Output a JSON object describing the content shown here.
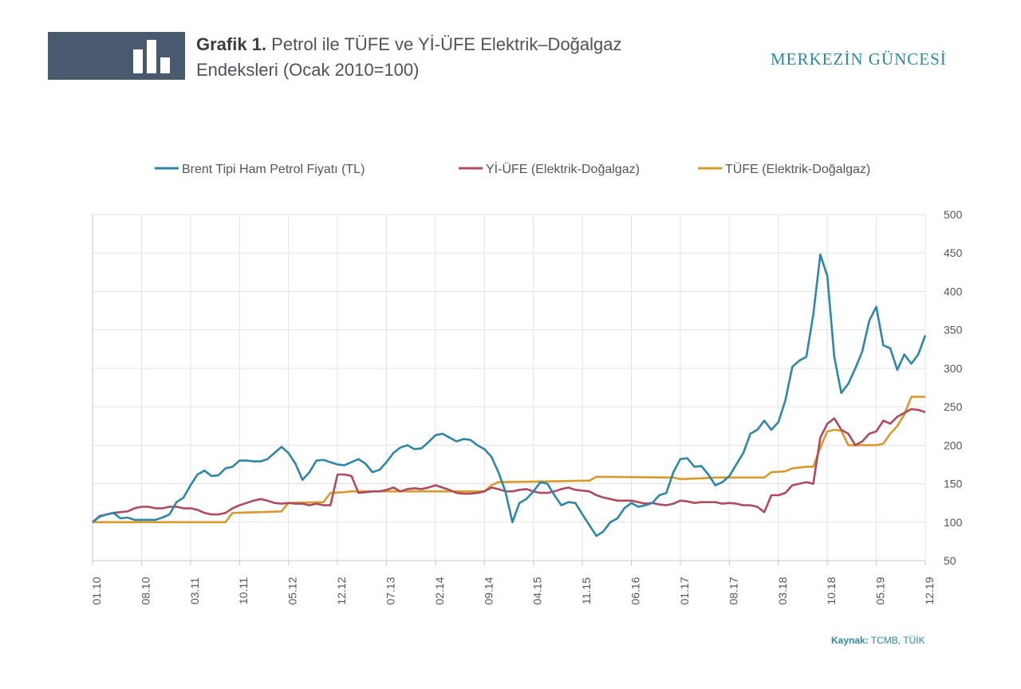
{
  "header": {
    "title_lead": "Grafik 1.",
    "title_rest": " Petrol ile TÜFE ve Yİ-ÜFE Elektrik–Doğalgaz",
    "title_line2": "Endeksleri  (Ocak 2010=100)",
    "brand": "MERKEZİN GÜNCESİ",
    "icon": "bar-chart-icon"
  },
  "source": {
    "label": "Kaynak:",
    "text": " TCMB, TÜİK"
  },
  "colors": {
    "brent": "#2e86a8",
    "yiufe": "#b04a5e",
    "tufe": "#d99a2b",
    "grid": "#e3e3e3",
    "axis": "#c8c8c8",
    "text": "#555555"
  },
  "chart_data": {
    "type": "line",
    "title": "Petrol ile TÜFE ve Yİ-ÜFE Elektrik–Doğalgaz Endeksleri (Ocak 2010=100)",
    "xlabel": "",
    "ylabel": "",
    "ylim": [
      50,
      500
    ],
    "yticks": [
      50,
      100,
      150,
      200,
      250,
      300,
      350,
      400,
      450,
      500
    ],
    "x_start": 0,
    "x_end": 119,
    "xticks": [
      {
        "label": "01.10",
        "i": 0
      },
      {
        "label": "08.10",
        "i": 7
      },
      {
        "label": "03.11",
        "i": 14
      },
      {
        "label": "10.11",
        "i": 21
      },
      {
        "label": "05.12",
        "i": 28
      },
      {
        "label": "12.12",
        "i": 35
      },
      {
        "label": "07.13",
        "i": 42
      },
      {
        "label": "02.14",
        "i": 49
      },
      {
        "label": "09.14",
        "i": 56
      },
      {
        "label": "04.15",
        "i": 63
      },
      {
        "label": "11.15",
        "i": 70
      },
      {
        "label": "06.16",
        "i": 77
      },
      {
        "label": "01.17",
        "i": 84
      },
      {
        "label": "08.17",
        "i": 91
      },
      {
        "label": "03.18",
        "i": 98
      },
      {
        "label": "10.18",
        "i": 105
      },
      {
        "label": "05.19",
        "i": 112
      },
      {
        "label": "12.19",
        "i": 119
      }
    ],
    "legend_position": "top",
    "series": [
      {
        "name": "Brent Tipi Ham Petrol Fiyatı (TL)",
        "points": [
          [
            0,
            100
          ],
          [
            1,
            107
          ],
          [
            2,
            110
          ],
          [
            3,
            112
          ],
          [
            4,
            105
          ],
          [
            5,
            106
          ],
          [
            6,
            103
          ],
          [
            7,
            103
          ],
          [
            8,
            103
          ],
          [
            9,
            103
          ],
          [
            10,
            106
          ],
          [
            11,
            110
          ],
          [
            12,
            126
          ],
          [
            13,
            132
          ],
          [
            14,
            148
          ],
          [
            15,
            162
          ],
          [
            16,
            167
          ],
          [
            17,
            160
          ],
          [
            18,
            161
          ],
          [
            19,
            170
          ],
          [
            20,
            172
          ],
          [
            21,
            180
          ],
          [
            22,
            180
          ],
          [
            23,
            179
          ],
          [
            24,
            179
          ],
          [
            25,
            182
          ],
          [
            26,
            190
          ],
          [
            27,
            198
          ],
          [
            28,
            190
          ],
          [
            29,
            176
          ],
          [
            30,
            155
          ],
          [
            31,
            165
          ],
          [
            32,
            180
          ],
          [
            33,
            181
          ],
          [
            34,
            178
          ],
          [
            35,
            175
          ],
          [
            36,
            174
          ],
          [
            37,
            178
          ],
          [
            38,
            182
          ],
          [
            39,
            176
          ],
          [
            40,
            165
          ],
          [
            41,
            168
          ],
          [
            42,
            178
          ],
          [
            43,
            190
          ],
          [
            44,
            197
          ],
          [
            45,
            200
          ],
          [
            46,
            195
          ],
          [
            47,
            196
          ],
          [
            48,
            204
          ],
          [
            49,
            213
          ],
          [
            50,
            215
          ],
          [
            51,
            210
          ],
          [
            52,
            205
          ],
          [
            53,
            208
          ],
          [
            54,
            207
          ],
          [
            55,
            200
          ],
          [
            56,
            195
          ],
          [
            57,
            185
          ],
          [
            58,
            165
          ],
          [
            59,
            140
          ],
          [
            60,
            100
          ],
          [
            61,
            125
          ],
          [
            62,
            130
          ],
          [
            63,
            140
          ],
          [
            64,
            152
          ],
          [
            65,
            150
          ],
          [
            66,
            135
          ],
          [
            67,
            122
          ],
          [
            68,
            126
          ],
          [
            69,
            125
          ],
          [
            70,
            110
          ],
          [
            71,
            96
          ],
          [
            72,
            82
          ],
          [
            73,
            88
          ],
          [
            74,
            100
          ],
          [
            75,
            105
          ],
          [
            76,
            118
          ],
          [
            77,
            125
          ],
          [
            78,
            120
          ],
          [
            79,
            122
          ],
          [
            80,
            125
          ],
          [
            81,
            135
          ],
          [
            82,
            138
          ],
          [
            83,
            165
          ],
          [
            84,
            182
          ],
          [
            85,
            183
          ],
          [
            86,
            172
          ],
          [
            87,
            173
          ],
          [
            88,
            162
          ],
          [
            89,
            148
          ],
          [
            90,
            152
          ],
          [
            91,
            160
          ],
          [
            92,
            175
          ],
          [
            93,
            190
          ],
          [
            94,
            215
          ],
          [
            95,
            220
          ],
          [
            96,
            232
          ],
          [
            97,
            220
          ],
          [
            98,
            230
          ],
          [
            99,
            258
          ],
          [
            100,
            302
          ],
          [
            101,
            310
          ],
          [
            102,
            315
          ],
          [
            103,
            370
          ],
          [
            104,
            448
          ],
          [
            105,
            420
          ],
          [
            106,
            315
          ],
          [
            107,
            268
          ],
          [
            108,
            280
          ],
          [
            109,
            300
          ],
          [
            110,
            322
          ],
          [
            111,
            362
          ],
          [
            112,
            380
          ],
          [
            113,
            330
          ],
          [
            114,
            326
          ],
          [
            115,
            298
          ],
          [
            116,
            318
          ],
          [
            117,
            306
          ],
          [
            118,
            318
          ],
          [
            119,
            343
          ]
        ]
      },
      {
        "name": "Yİ-ÜFE (Elektrik-Doğalgaz)",
        "points": [
          [
            0,
            100
          ],
          [
            1,
            108
          ],
          [
            2,
            110
          ],
          [
            3,
            112
          ],
          [
            4,
            113
          ],
          [
            5,
            114
          ],
          [
            6,
            118
          ],
          [
            7,
            120
          ],
          [
            8,
            120
          ],
          [
            9,
            118
          ],
          [
            10,
            118
          ],
          [
            11,
            120
          ],
          [
            12,
            120
          ],
          [
            13,
            118
          ],
          [
            14,
            118
          ],
          [
            15,
            116
          ],
          [
            16,
            112
          ],
          [
            17,
            110
          ],
          [
            18,
            110
          ],
          [
            19,
            112
          ],
          [
            20,
            118
          ],
          [
            21,
            122
          ],
          [
            22,
            125
          ],
          [
            23,
            128
          ],
          [
            24,
            130
          ],
          [
            25,
            128
          ],
          [
            26,
            125
          ],
          [
            27,
            124
          ],
          [
            28,
            125
          ],
          [
            29,
            124
          ],
          [
            30,
            124
          ],
          [
            31,
            122
          ],
          [
            32,
            124
          ],
          [
            33,
            122
          ],
          [
            34,
            122
          ],
          [
            35,
            162
          ],
          [
            36,
            162
          ],
          [
            37,
            160
          ],
          [
            38,
            138
          ],
          [
            39,
            139
          ],
          [
            40,
            140
          ],
          [
            41,
            140
          ],
          [
            42,
            142
          ],
          [
            43,
            145
          ],
          [
            44,
            140
          ],
          [
            45,
            143
          ],
          [
            46,
            144
          ],
          [
            47,
            143
          ],
          [
            48,
            145
          ],
          [
            49,
            148
          ],
          [
            50,
            145
          ],
          [
            51,
            142
          ],
          [
            52,
            138
          ],
          [
            53,
            137
          ],
          [
            54,
            137
          ],
          [
            55,
            138
          ],
          [
            56,
            140
          ],
          [
            57,
            145
          ],
          [
            58,
            143
          ],
          [
            59,
            140
          ],
          [
            60,
            140
          ],
          [
            61,
            142
          ],
          [
            62,
            143
          ],
          [
            63,
            140
          ],
          [
            64,
            138
          ],
          [
            65,
            138
          ],
          [
            66,
            140
          ],
          [
            67,
            143
          ],
          [
            68,
            145
          ],
          [
            69,
            142
          ],
          [
            70,
            141
          ],
          [
            71,
            140
          ],
          [
            72,
            135
          ],
          [
            73,
            132
          ],
          [
            74,
            130
          ],
          [
            75,
            128
          ],
          [
            76,
            128
          ],
          [
            77,
            128
          ],
          [
            78,
            126
          ],
          [
            79,
            124
          ],
          [
            80,
            125
          ],
          [
            81,
            123
          ],
          [
            82,
            122
          ],
          [
            83,
            124
          ],
          [
            84,
            128
          ],
          [
            85,
            127
          ],
          [
            86,
            125
          ],
          [
            87,
            126
          ],
          [
            88,
            126
          ],
          [
            89,
            126
          ],
          [
            90,
            124
          ],
          [
            91,
            125
          ],
          [
            92,
            124
          ],
          [
            93,
            122
          ],
          [
            94,
            122
          ],
          [
            95,
            120
          ],
          [
            96,
            113
          ],
          [
            97,
            135
          ],
          [
            98,
            135
          ],
          [
            99,
            138
          ],
          [
            100,
            148
          ],
          [
            101,
            150
          ],
          [
            102,
            152
          ],
          [
            103,
            150
          ],
          [
            104,
            210
          ],
          [
            105,
            228
          ],
          [
            106,
            235
          ],
          [
            107,
            220
          ],
          [
            108,
            215
          ],
          [
            109,
            200
          ],
          [
            110,
            205
          ],
          [
            111,
            215
          ],
          [
            112,
            218
          ],
          [
            113,
            232
          ],
          [
            114,
            228
          ],
          [
            115,
            237
          ],
          [
            116,
            242
          ],
          [
            117,
            247
          ],
          [
            118,
            246
          ],
          [
            119,
            243
          ]
        ]
      },
      {
        "name": "TÜFE (Elektrik-Doğalgaz)",
        "points": [
          [
            0,
            100
          ],
          [
            19,
            100
          ],
          [
            20,
            112
          ],
          [
            24,
            113
          ],
          [
            27,
            114
          ],
          [
            28,
            125
          ],
          [
            33,
            126
          ],
          [
            34,
            138
          ],
          [
            36,
            139
          ],
          [
            37,
            140
          ],
          [
            56,
            140
          ],
          [
            57,
            148
          ],
          [
            58,
            152
          ],
          [
            65,
            153
          ],
          [
            71,
            154
          ],
          [
            72,
            159
          ],
          [
            83,
            158
          ],
          [
            84,
            156
          ],
          [
            87,
            157
          ],
          [
            89,
            158
          ],
          [
            96,
            158
          ],
          [
            97,
            165
          ],
          [
            99,
            166
          ],
          [
            100,
            170
          ],
          [
            101,
            171
          ],
          [
            102,
            172
          ],
          [
            103,
            172
          ],
          [
            104,
            197
          ],
          [
            105,
            218
          ],
          [
            106,
            220
          ],
          [
            107,
            219
          ],
          [
            108,
            200
          ],
          [
            112,
            200
          ],
          [
            113,
            202
          ],
          [
            114,
            215
          ],
          [
            115,
            225
          ],
          [
            116,
            240
          ],
          [
            117,
            263
          ],
          [
            119,
            263
          ]
        ]
      }
    ]
  }
}
